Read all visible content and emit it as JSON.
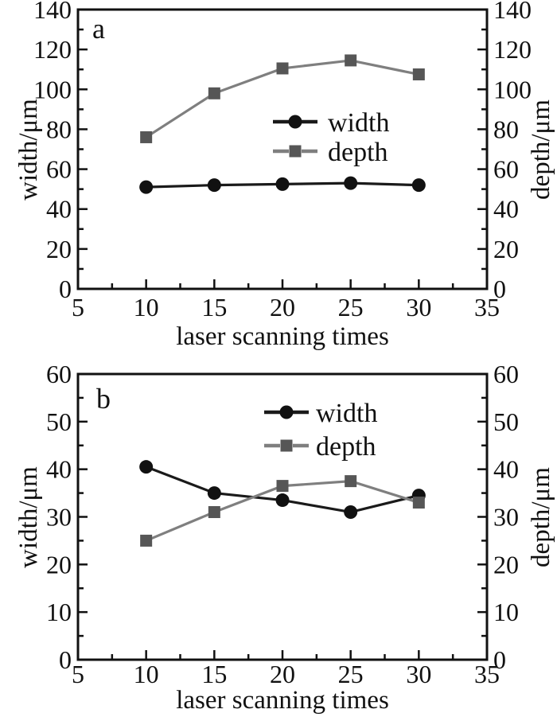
{
  "figure": {
    "description": "Two stacked line charts of channel width and depth versus laser scanning times",
    "background_color": "#ffffff",
    "text_color": "#111111"
  },
  "chart_data": [
    {
      "id": "a",
      "type": "line",
      "panel_label": "a",
      "xlabel": "laser scanning times",
      "ylabel_left": "width/μm",
      "ylabel_right": "depth/μm",
      "xlim": [
        5,
        35
      ],
      "ylim": [
        0,
        140
      ],
      "xticks": [
        5,
        10,
        15,
        20,
        25,
        30,
        35
      ],
      "yticks": [
        0,
        20,
        40,
        60,
        80,
        100,
        120,
        140
      ],
      "x_minor_ticks": [
        7.5,
        12.5,
        17.5,
        22.5,
        27.5,
        32.5
      ],
      "y_minor_ticks": [
        10,
        30,
        50,
        70,
        90,
        110,
        130
      ],
      "grid": false,
      "legend_position": "center",
      "x": [
        10,
        15,
        20,
        25,
        30
      ],
      "series": [
        {
          "name": "width",
          "axis": "left",
          "marker": "circle",
          "line_color": "#1a1a1a",
          "marker_color": "#111111",
          "values": [
            51,
            52,
            52.5,
            53,
            52
          ]
        },
        {
          "name": "depth",
          "axis": "right",
          "marker": "square",
          "line_color": "#7f7f7f",
          "marker_color": "#565656",
          "values": [
            76,
            98,
            110.5,
            114.5,
            107.5
          ]
        }
      ]
    },
    {
      "id": "b",
      "type": "line",
      "panel_label": "b",
      "xlabel": "laser scanning times",
      "ylabel_left": "width/μm",
      "ylabel_right": "depth/μm",
      "xlim": [
        5,
        35
      ],
      "ylim": [
        0,
        60
      ],
      "xticks": [
        5,
        10,
        15,
        20,
        25,
        30,
        35
      ],
      "yticks": [
        0,
        10,
        20,
        30,
        40,
        50,
        60
      ],
      "x_minor_ticks": [
        7.5,
        12.5,
        17.5,
        22.5,
        27.5,
        32.5
      ],
      "y_minor_ticks": [
        5,
        15,
        25,
        35,
        45,
        55
      ],
      "grid": false,
      "legend_position": "top-center",
      "x": [
        10,
        15,
        20,
        25,
        30
      ],
      "series": [
        {
          "name": "width",
          "axis": "left",
          "marker": "circle",
          "line_color": "#1a1a1a",
          "marker_color": "#111111",
          "values": [
            40.5,
            35,
            33.5,
            31,
            34.5
          ]
        },
        {
          "name": "depth",
          "axis": "right",
          "marker": "square",
          "line_color": "#7f7f7f",
          "marker_color": "#565656",
          "values": [
            25,
            31,
            36.5,
            37.5,
            33
          ]
        }
      ]
    }
  ]
}
